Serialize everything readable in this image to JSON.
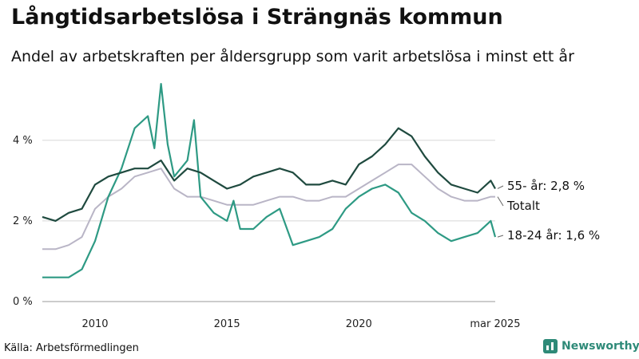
{
  "title": "Långtidsarbetslösa i Strängnäs kommun",
  "subtitle": "Andel av arbetskraften per åldersgrupp som varit arbetslösa i minst ett år",
  "source": "Källa: Arbetsförmedlingen",
  "brand": "Newsworthy",
  "colors": {
    "age55": "#1f4a3f",
    "totalt": "#b9b5c6",
    "age1824": "#2e9a84",
    "grid": "#d8d8d8"
  },
  "chart_data": {
    "type": "line",
    "title": "Långtidsarbetslösa i Strängnäs kommun",
    "subtitle": "Andel av arbetskraften per åldersgrupp som varit arbetslösa i minst ett år",
    "ylim": [
      0,
      5.5
    ],
    "xlim": [
      2008.0,
      2025.17
    ],
    "yticks": [
      0,
      2,
      4
    ],
    "ytick_labels": [
      "0 %",
      "2 %",
      "4 %"
    ],
    "xticks": [
      2010,
      2015,
      2020,
      2025.17
    ],
    "xtick_labels": [
      "2010",
      "2015",
      "2020",
      "mar 2025"
    ],
    "grid": true,
    "series": [
      {
        "name": "55- år",
        "key": "age55",
        "end_label": "55- år: 2,8 %",
        "x": [
          2008.0,
          2008.5,
          2009.0,
          2009.5,
          2010.0,
          2010.5,
          2011.0,
          2011.5,
          2012.0,
          2012.5,
          2013.0,
          2013.5,
          2014.0,
          2014.5,
          2015.0,
          2015.5,
          2016.0,
          2016.5,
          2017.0,
          2017.5,
          2018.0,
          2018.5,
          2019.0,
          2019.5,
          2020.0,
          2020.5,
          2021.0,
          2021.5,
          2022.0,
          2022.5,
          2023.0,
          2023.5,
          2024.0,
          2024.5,
          2025.0,
          2025.17
        ],
        "y": [
          2.1,
          2.0,
          2.2,
          2.3,
          2.9,
          3.1,
          3.2,
          3.3,
          3.3,
          3.5,
          3.0,
          3.3,
          3.2,
          3.0,
          2.8,
          2.9,
          3.1,
          3.2,
          3.3,
          3.2,
          2.9,
          2.9,
          3.0,
          2.9,
          3.4,
          3.6,
          3.9,
          4.3,
          4.1,
          3.6,
          3.2,
          2.9,
          2.8,
          2.7,
          3.0,
          2.8
        ]
      },
      {
        "name": "Totalt",
        "key": "totalt",
        "end_label": "Totalt",
        "x": [
          2008.0,
          2008.5,
          2009.0,
          2009.5,
          2010.0,
          2010.5,
          2011.0,
          2011.5,
          2012.0,
          2012.5,
          2013.0,
          2013.5,
          2014.0,
          2014.5,
          2015.0,
          2015.5,
          2016.0,
          2016.5,
          2017.0,
          2017.5,
          2018.0,
          2018.5,
          2019.0,
          2019.5,
          2020.0,
          2020.5,
          2021.0,
          2021.5,
          2022.0,
          2022.5,
          2023.0,
          2023.5,
          2024.0,
          2024.5,
          2025.0,
          2025.17
        ],
        "y": [
          1.3,
          1.3,
          1.4,
          1.6,
          2.3,
          2.6,
          2.8,
          3.1,
          3.2,
          3.3,
          2.8,
          2.6,
          2.6,
          2.5,
          2.4,
          2.4,
          2.4,
          2.5,
          2.6,
          2.6,
          2.5,
          2.5,
          2.6,
          2.6,
          2.8,
          3.0,
          3.2,
          3.4,
          3.4,
          3.1,
          2.8,
          2.6,
          2.5,
          2.5,
          2.6,
          2.6
        ]
      },
      {
        "name": "18-24 år",
        "key": "age1824",
        "end_label": "18-24 år: 1,6 %",
        "x": [
          2008.0,
          2008.5,
          2009.0,
          2009.5,
          2010.0,
          2010.5,
          2011.0,
          2011.5,
          2012.0,
          2012.25,
          2012.5,
          2012.75,
          2013.0,
          2013.5,
          2013.75,
          2014.0,
          2014.5,
          2015.0,
          2015.25,
          2015.5,
          2016.0,
          2016.5,
          2017.0,
          2017.5,
          2018.0,
          2018.5,
          2019.0,
          2019.5,
          2020.0,
          2020.5,
          2021.0,
          2021.5,
          2022.0,
          2022.5,
          2023.0,
          2023.5,
          2024.0,
          2024.5,
          2025.0,
          2025.17
        ],
        "y": [
          0.6,
          0.6,
          0.6,
          0.8,
          1.5,
          2.6,
          3.3,
          4.3,
          4.6,
          3.8,
          5.4,
          3.9,
          3.1,
          3.5,
          4.5,
          2.6,
          2.2,
          2.0,
          2.5,
          1.8,
          1.8,
          2.1,
          2.3,
          1.4,
          1.5,
          1.6,
          1.8,
          2.3,
          2.6,
          2.8,
          2.9,
          2.7,
          2.2,
          2.0,
          1.7,
          1.5,
          1.6,
          1.7,
          2.0,
          1.6
        ]
      }
    ]
  }
}
